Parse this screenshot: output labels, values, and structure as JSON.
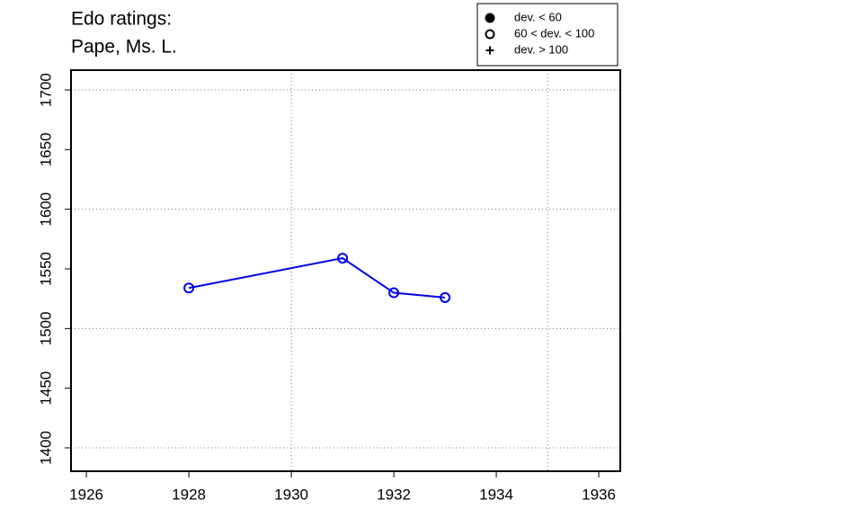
{
  "chart_data": {
    "type": "line",
    "title": [
      "Edo ratings:",
      "Pape, Ms. L."
    ],
    "x": [
      1928,
      1931,
      1932,
      1933
    ],
    "series": [
      {
        "color": "#0000ee",
        "marker": "open",
        "values": [
          1534,
          1559,
          1530,
          1526
        ]
      }
    ],
    "xlim": [
      1925.7,
      1936.42
    ],
    "ylim": [
      1380.4,
      1716.6
    ],
    "xticks": [
      1926,
      1928,
      1930,
      1932,
      1934,
      1936
    ],
    "yticks": [
      1400,
      1450,
      1500,
      1550,
      1600,
      1650,
      1700
    ],
    "xgrid": [
      1930,
      1935
    ],
    "ygrid": [
      1400,
      1500,
      1600,
      1700
    ],
    "legend": [
      {
        "label": "dev. < 60",
        "marker": "filled"
      },
      {
        "label": "60 < dev. < 100",
        "marker": "open"
      },
      {
        "label": "dev. > 100",
        "marker": "plus"
      }
    ]
  }
}
